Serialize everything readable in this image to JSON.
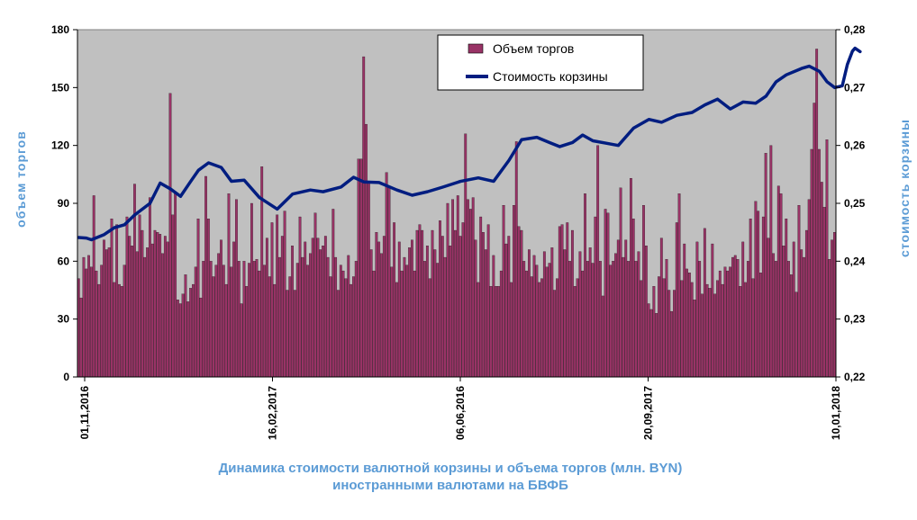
{
  "chart_data": {
    "type": "bar+line",
    "title": "Динамика стоимости валютной корзины и объема торгов (млн. BYN) иностранными валютами на БВФБ",
    "title_line1": "Динамика стоимости валютной корзины и объема торгов (млн. BYN)",
    "title_line2": "иностранными валютами на БВФБ",
    "ylabel_left": "объем торгов",
    "ylabel_right": "стоимость корзины",
    "ylim_left": [
      0,
      180
    ],
    "ylim_right": [
      0.22,
      0.28
    ],
    "yticks_left": [
      "0",
      "30",
      "60",
      "90",
      "120",
      "150",
      "180"
    ],
    "yticks_right": [
      "0,22",
      "0,23",
      "0,24",
      "0,25",
      "0,26",
      "0,27",
      "0,28"
    ],
    "xticks": [
      "01,11,2016",
      "16,02,2017",
      "06,06,2016",
      "20,09,2017",
      "10,01,2018"
    ],
    "plot_background": "#c0c0c0",
    "legend_position": "top-right",
    "series": [
      {
        "name": "Объем торгов",
        "kind": "bar",
        "color": "#993366",
        "values": [
          51,
          41,
          62,
          56,
          63,
          57,
          94,
          55,
          48,
          58,
          71,
          66,
          67,
          82,
          49,
          79,
          48,
          47,
          58,
          83,
          73,
          68,
          100,
          65,
          84,
          76,
          62,
          67,
          93,
          69,
          76,
          75,
          74,
          64,
          73,
          70,
          147,
          84,
          96,
          40,
          38,
          43,
          53,
          39,
          46,
          48,
          57,
          82,
          41,
          60,
          104,
          82,
          60,
          52,
          58,
          64,
          71,
          58,
          48,
          95,
          57,
          70,
          92,
          60,
          38,
          60,
          47,
          59,
          90,
          60,
          61,
          55,
          109,
          58,
          72,
          52,
          80,
          48,
          84,
          62,
          73,
          86,
          45,
          52,
          68,
          45,
          59,
          83,
          62,
          70,
          58,
          64,
          72,
          85,
          72,
          66,
          68,
          73,
          62,
          52,
          87,
          62,
          45,
          58,
          55,
          51,
          63,
          48,
          52,
          60,
          113,
          113,
          166,
          131,
          101,
          66,
          55,
          75,
          70,
          64,
          73,
          106,
          98,
          57,
          80,
          49,
          70,
          55,
          62,
          58,
          67,
          71,
          55,
          76,
          79,
          76,
          60,
          68,
          51,
          76,
          66,
          59,
          81,
          73,
          62,
          90,
          68,
          92,
          76,
          94,
          73,
          80,
          126,
          92,
          87,
          93,
          71,
          49,
          83,
          75,
          66,
          79,
          47,
          63,
          47,
          47,
          55,
          89,
          69,
          73,
          49,
          89,
          122,
          78,
          76,
          60,
          55,
          66,
          52,
          63,
          58,
          49,
          51,
          65,
          57,
          59,
          67,
          45,
          51,
          78,
          79,
          66,
          80,
          60,
          76,
          47,
          51,
          65,
          55,
          95,
          60,
          67,
          59,
          83,
          120,
          60,
          42,
          87,
          85,
          58,
          60,
          64,
          71,
          98,
          62,
          71,
          60,
          103,
          82,
          60,
          65,
          50,
          89,
          68,
          38,
          35,
          47,
          33,
          52,
          72,
          51,
          61,
          45,
          34,
          45,
          80,
          95,
          50,
          69,
          56,
          54,
          49,
          40,
          70,
          60,
          43,
          77,
          48,
          46,
          69,
          43,
          50,
          55,
          48,
          57,
          55,
          57,
          62,
          63,
          61,
          47,
          70,
          49,
          60,
          82,
          51,
          91,
          86,
          54,
          83,
          116,
          72,
          120,
          64,
          60,
          99,
          95,
          68,
          82,
          60,
          53,
          70,
          44,
          89,
          66,
          62,
          76,
          92,
          118,
          142,
          170,
          118,
          101,
          88,
          123,
          61,
          71,
          75
        ]
      },
      {
        "name": "Стоимость корзины",
        "kind": "line",
        "color": "#001d80",
        "points": [
          [
            0,
            0.2441
          ],
          [
            3,
            0.244
          ],
          [
            5,
            0.2437
          ],
          [
            10,
            0.2446
          ],
          [
            14,
            0.2458
          ],
          [
            18,
            0.2463
          ],
          [
            22,
            0.248
          ],
          [
            28,
            0.25
          ],
          [
            32,
            0.2535
          ],
          [
            36,
            0.2525
          ],
          [
            40,
            0.2512
          ],
          [
            44,
            0.2538
          ],
          [
            47,
            0.2557
          ],
          [
            51,
            0.257
          ],
          [
            56,
            0.2562
          ],
          [
            60,
            0.2538
          ],
          [
            65,
            0.254
          ],
          [
            71,
            0.251
          ],
          [
            78,
            0.249
          ],
          [
            84,
            0.2516
          ],
          [
            91,
            0.2523
          ],
          [
            96,
            0.252
          ],
          [
            103,
            0.2528
          ],
          [
            108,
            0.2545
          ],
          [
            112,
            0.2537
          ],
          [
            118,
            0.2536
          ],
          [
            125,
            0.2523
          ],
          [
            131,
            0.2514
          ],
          [
            137,
            0.252
          ],
          [
            143,
            0.2528
          ],
          [
            150,
            0.2538
          ],
          [
            157,
            0.2544
          ],
          [
            163,
            0.2538
          ],
          [
            169,
            0.2574
          ],
          [
            174,
            0.261
          ],
          [
            180,
            0.2614
          ],
          [
            185,
            0.2605
          ],
          [
            189,
            0.2598
          ],
          [
            194,
            0.2605
          ],
          [
            198,
            0.2618
          ],
          [
            202,
            0.2608
          ],
          [
            207,
            0.2604
          ],
          [
            212,
            0.26
          ],
          [
            218,
            0.263
          ],
          [
            224,
            0.2645
          ],
          [
            229,
            0.264
          ],
          [
            235,
            0.2652
          ],
          [
            241,
            0.2657
          ],
          [
            246,
            0.267
          ],
          [
            251,
            0.268
          ],
          [
            256,
            0.2663
          ],
          [
            261,
            0.2675
          ],
          [
            266,
            0.2673
          ],
          [
            270,
            0.2685
          ],
          [
            274,
            0.271
          ],
          [
            278,
            0.2722
          ],
          [
            284,
            0.2733
          ],
          [
            287,
            0.2737
          ],
          [
            291,
            0.2728
          ],
          [
            294,
            0.271
          ],
          [
            297,
            0.27
          ],
          [
            300,
            0.2703
          ],
          [
            302,
            0.274
          ],
          [
            304,
            0.2763
          ],
          [
            305,
            0.2768
          ],
          [
            307,
            0.2762
          ]
        ]
      }
    ]
  }
}
